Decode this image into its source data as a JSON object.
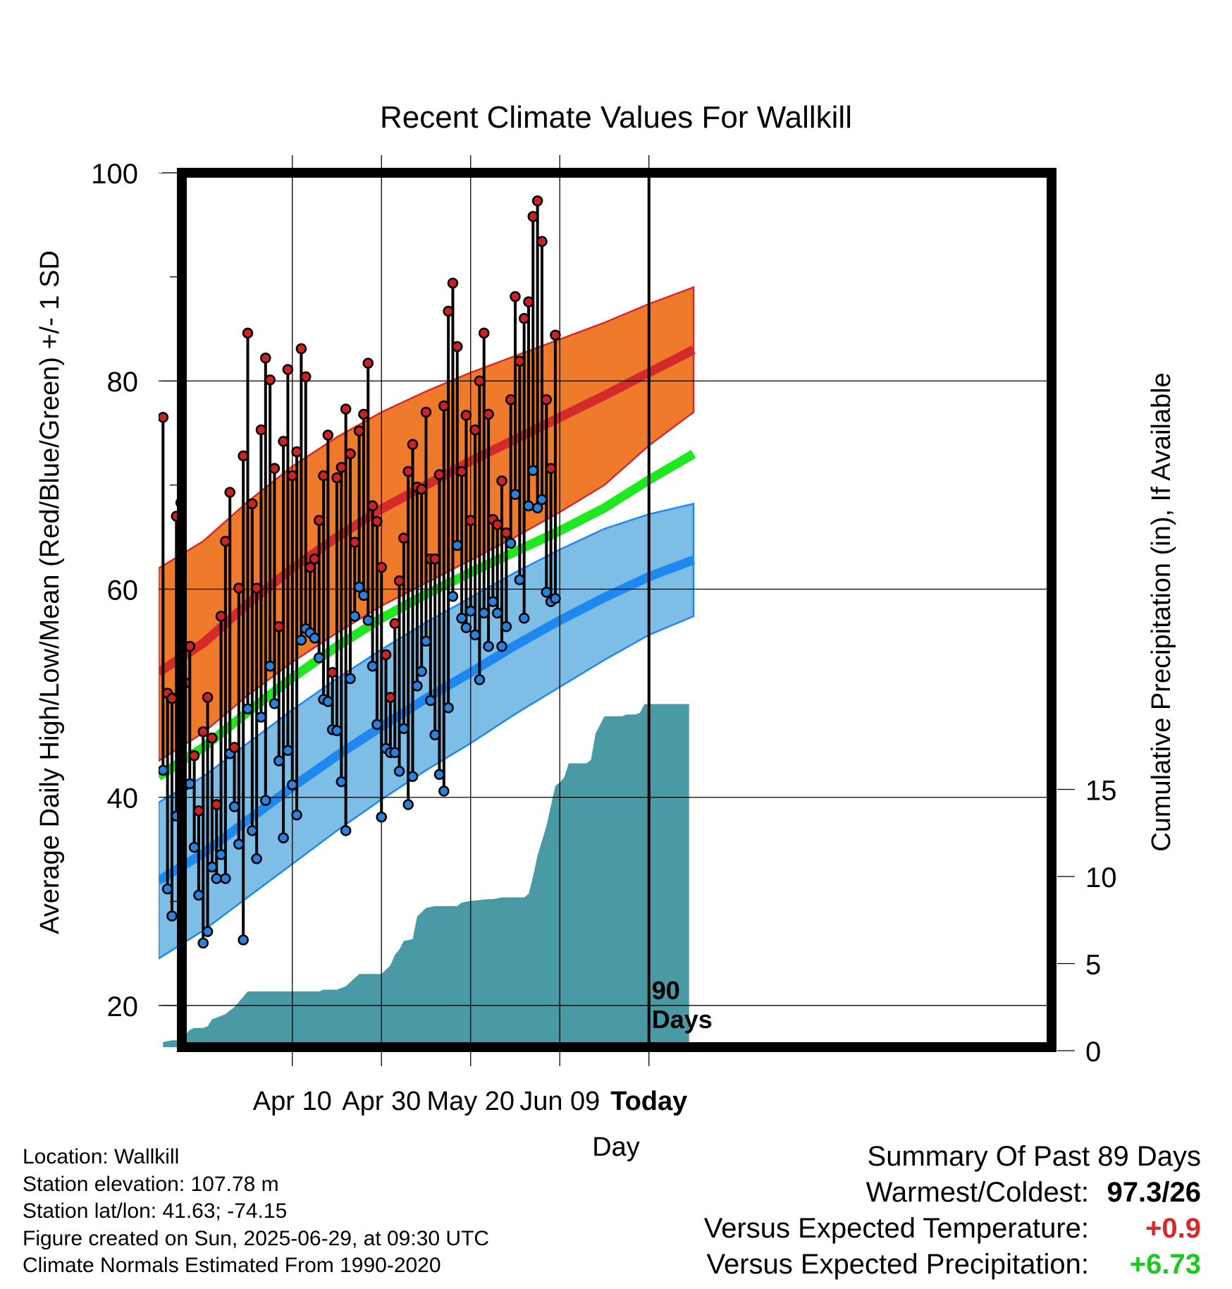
{
  "chart_data": {
    "type": "line",
    "title": "Recent Climate Values For Wallkill",
    "xlabel": "Day",
    "ylabel": "Average Daily High/Low/Mean (Red/Blue/Green) +/- 1 SD",
    "y2label": "Cumulative Precipitation (in), If Available",
    "xlim": [
      -11,
      9
    ],
    "ylim": [
      16,
      100
    ],
    "y2lim": [
      0,
      48
    ],
    "x_ticks": [
      {
        "x": -8,
        "label": "Apr 10"
      },
      {
        "x": -6,
        "label": "Apr 30"
      },
      {
        "x": -4,
        "label": "May 20"
      },
      {
        "x": -2,
        "label": "Jun 09"
      },
      {
        "x": 0,
        "label": "Today"
      }
    ],
    "y_ticks": [
      {
        "value": 20,
        "label": "20"
      },
      {
        "value": 40,
        "label": "40"
      },
      {
        "value": 60,
        "label": "60"
      },
      {
        "value": 80,
        "label": "80"
      },
      {
        "value": 100,
        "label": "100"
      }
    ],
    "y_minor_ticks": [
      30,
      50,
      70,
      90
    ],
    "y2_ticks": [
      {
        "value": 0,
        "label": "0"
      },
      {
        "value": 5,
        "label": "5"
      },
      {
        "value": 10,
        "label": "10"
      },
      {
        "value": 15,
        "label": "15"
      }
    ],
    "today_marker": {
      "x": 0,
      "label_line1": "90",
      "label_line2": "Days"
    },
    "grid": true,
    "colors": {
      "high_band": "#f07a2c",
      "high_mean": "#d42a2a",
      "low_band": "#7dbde6",
      "low_mean": "#1e88f0",
      "mean_line": "#1ee81e",
      "precip": "#4a9aa5",
      "high_marker": "#cc2222",
      "low_marker": "#2a82e0"
    },
    "normals": {
      "x": [
        -11,
        -10,
        -9,
        -8,
        -7,
        -6,
        -5,
        -4,
        -3,
        -2,
        -1,
        0,
        1
      ],
      "high_mean": [
        52.0,
        54.8,
        58.6,
        62.0,
        65.0,
        67.7,
        70.0,
        72.3,
        74.4,
        76.5,
        78.6,
        80.8,
        83.0
      ],
      "high_sd_upper": [
        62.0,
        64.6,
        68.4,
        71.8,
        74.6,
        77.0,
        79.0,
        80.8,
        82.4,
        84.0,
        85.6,
        87.4,
        89.0
      ],
      "high_sd_lower": [
        43.5,
        46.2,
        49.8,
        53.0,
        55.8,
        58.4,
        60.6,
        62.8,
        65.0,
        67.4,
        70.0,
        73.8,
        77.0
      ],
      "mean": [
        42.0,
        44.8,
        48.2,
        51.5,
        54.5,
        57.2,
        59.5,
        61.6,
        63.6,
        65.6,
        67.8,
        70.5,
        73.0
      ],
      "low_mean": [
        32.0,
        34.6,
        37.8,
        41.0,
        44.0,
        46.8,
        49.5,
        52.0,
        54.6,
        57.0,
        59.2,
        61.2,
        62.8
      ],
      "low_sd_upper": [
        39.5,
        42.0,
        45.2,
        48.4,
        51.4,
        54.2,
        56.8,
        59.2,
        61.6,
        63.8,
        65.8,
        67.2,
        68.2
      ],
      "low_sd_lower": [
        24.5,
        27.2,
        30.4,
        33.6,
        36.8,
        39.8,
        42.6,
        45.2,
        48.0,
        50.6,
        53.2,
        55.6,
        57.4
      ]
    },
    "observed": {
      "start_x": -10.9,
      "step": 0.1,
      "high": [
        76.5,
        50,
        49.5,
        67,
        68.3,
        51,
        54.5,
        44,
        38.7,
        46.3,
        49.6,
        45.7,
        39.3,
        57.4,
        64.6,
        69.3,
        44.8,
        60.1,
        72.8,
        84.6,
        68.2,
        60.1,
        75.3,
        82.2,
        80.1,
        71.6,
        56.4,
        74.2,
        81.1,
        70.9,
        73.2,
        83.1,
        80.4,
        62.1,
        62.9,
        66.6,
        70.9,
        74.8,
        52,
        70.7,
        71.7,
        77.3,
        73,
        64.5,
        75.2,
        76.8,
        81.7,
        68,
        66.5,
        62.1,
        53.7,
        49.6,
        56.7,
        60.8,
        64.9,
        71.3,
        73.9,
        69.8,
        69.6,
        77,
        62.9,
        62.9,
        71,
        77.6,
        86.7,
        89.4,
        83.3,
        71.3,
        76.7,
        66.6,
        75.3,
        80,
        84.6,
        76.8,
        66.7,
        66.2,
        70.4,
        65.4,
        78.2,
        88.1,
        81.9,
        86,
        87.6,
        95.8,
        97.3,
        93.4,
        78.2,
        71.6,
        84.4
      ],
      "low": [
        42.6,
        31.2,
        28.6,
        38.2,
        48.5,
        41.2,
        41.3,
        35.2,
        30.6,
        26,
        27.1,
        33.3,
        32.2,
        34.5,
        32.2,
        44.2,
        39.1,
        35.5,
        26.3,
        48.5,
        36.8,
        34.1,
        47.7,
        39.7,
        52.6,
        49,
        43.5,
        36.1,
        44.5,
        41.2,
        38.3,
        55.1,
        56.2,
        55.8,
        55.3,
        53.4,
        49.4,
        49.2,
        46.5,
        46.4,
        41.5,
        36.8,
        51.4,
        57.4,
        60.2,
        59.4,
        57,
        52.6,
        47,
        38.1,
        44.7,
        44.3,
        44.3,
        42.5,
        46.6,
        39.3,
        42,
        50.7,
        52.1,
        55,
        49.3,
        46,
        42.2,
        40.6,
        48.6,
        59.3,
        64.2,
        57.2,
        56.3,
        57.9,
        55.6,
        51.3,
        57.7,
        54.5,
        58.8,
        57.7,
        54.5,
        56.4,
        64.4,
        69.1,
        60.9,
        57.2,
        68,
        71.4,
        67.8,
        68.6,
        59.7,
        58.8,
        59.1
      ]
    },
    "precip": {
      "x": [
        -10.9,
        -10.7,
        -10.6,
        -10.5,
        -10.4,
        -10.3,
        -10.2,
        -10.0,
        -9.9,
        -9.8,
        -9.6,
        -9.5,
        -9.3,
        -9.0,
        -8.5,
        -8.2,
        -8.0,
        -7.8,
        -7.4,
        -7.3,
        -7.2,
        -7.0,
        -6.8,
        -6.5,
        -6.2,
        -6.1,
        -6.0,
        -5.8,
        -5.7,
        -5.6,
        -5.5,
        -5.3,
        -5.2,
        -5.0,
        -4.8,
        -4.7,
        -4.5,
        -4.3,
        -4.2,
        -4.0,
        -3.6,
        -3.5,
        -3.3,
        -3.0,
        -2.8,
        -2.7,
        -2.6,
        -2.5,
        -2.3,
        -2.1,
        -2.0,
        -1.9,
        -1.8,
        -1.6,
        -1.4,
        -1.3,
        -1.2,
        -1.0,
        -0.8,
        -0.6,
        -0.5,
        -0.3,
        -0.2,
        -0.1,
        0.9
      ],
      "y": [
        0.5,
        0.6,
        0.6,
        0.7,
        0.9,
        1.2,
        1.3,
        1.3,
        1.4,
        1.8,
        2.0,
        2.1,
        2.5,
        3.4,
        3.4,
        3.4,
        3.4,
        3.4,
        3.4,
        3.5,
        3.5,
        3.5,
        3.7,
        4.4,
        4.4,
        4.4,
        4.4,
        4.9,
        5.5,
        5.8,
        6.3,
        6.4,
        7.7,
        8.2,
        8.3,
        8.3,
        8.3,
        8.3,
        8.5,
        8.6,
        8.7,
        8.7,
        8.8,
        8.8,
        8.8,
        9.0,
        10.0,
        11.2,
        12.9,
        15.2,
        15.4,
        15.7,
        16.5,
        16.5,
        16.5,
        16.7,
        18.2,
        19.2,
        19.2,
        19.2,
        19.3,
        19.3,
        19.4,
        19.9,
        19.9
      ]
    }
  },
  "labels": {
    "location": "Location: Wallkill",
    "elevation": "Station elevation: 107.78 m",
    "latlon": "Station lat/lon: 41.63; -74.15",
    "created": "Figure created on Sun, 2025-06-29, at 09:30 UTC",
    "normals": "Climate Normals Estimated From 1990-2020"
  },
  "summary": {
    "title": "Summary Of Past 89 Days",
    "warmest_label": "Warmest/Coldest:",
    "warmest_value": "97.3/26",
    "temp_label": "Versus Expected Temperature:",
    "temp_value": "+0.9",
    "temp_color": "#d42a2a",
    "precip_label": "Versus Expected Precipitation:",
    "precip_value": "+6.73",
    "precip_color": "#1ec81e"
  }
}
